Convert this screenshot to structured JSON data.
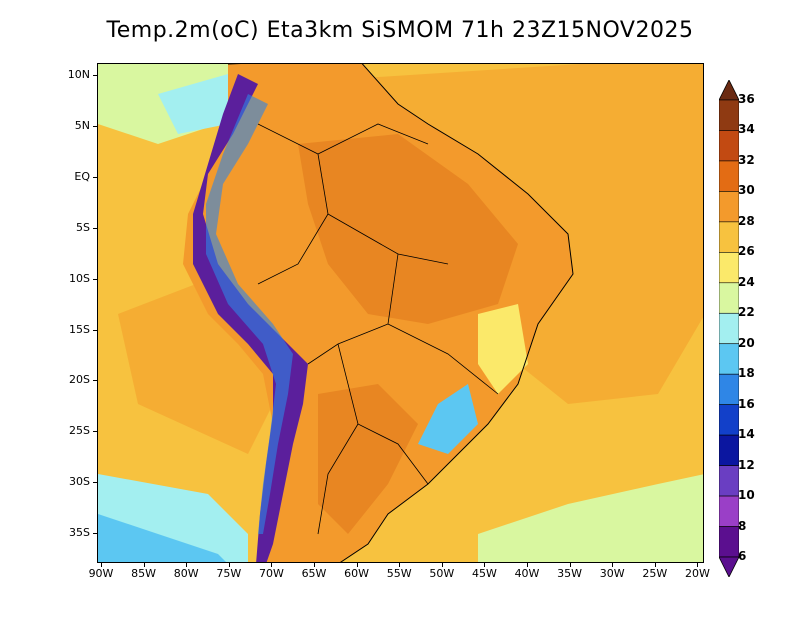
{
  "title": "Temp.2m(oC) Eta3km SiSMOM 71h 23Z15NOV2025",
  "map": {
    "lat_ticks": [
      "10N",
      "5N",
      "EQ",
      "5S",
      "10S",
      "15S",
      "20S",
      "25S",
      "30S",
      "35S"
    ],
    "lon_ticks": [
      "90W",
      "85W",
      "80W",
      "75W",
      "70W",
      "65W",
      "60W",
      "55W",
      "50W",
      "45W",
      "40W",
      "35W",
      "30W",
      "25W",
      "20W"
    ],
    "land_color": "#f39a2c",
    "ocean_color": "#f7c23f",
    "andes_color": "#5b1f9c"
  },
  "colorbar": {
    "labels": [
      "36",
      "34",
      "32",
      "30",
      "28",
      "26",
      "24",
      "22",
      "20",
      "18",
      "16",
      "14",
      "12",
      "10",
      "8",
      "6"
    ],
    "colors": [
      "#6a2a12",
      "#8f3a12",
      "#c24a12",
      "#e36c14",
      "#f39a2c",
      "#f7c23f",
      "#fbe96a",
      "#d9f7a0",
      "#a3eff0",
      "#5cc7f2",
      "#2f86e6",
      "#1240c9",
      "#0b16a0",
      "#6a3ec2",
      "#9a3fc7",
      "#5b0f8f"
    ]
  }
}
